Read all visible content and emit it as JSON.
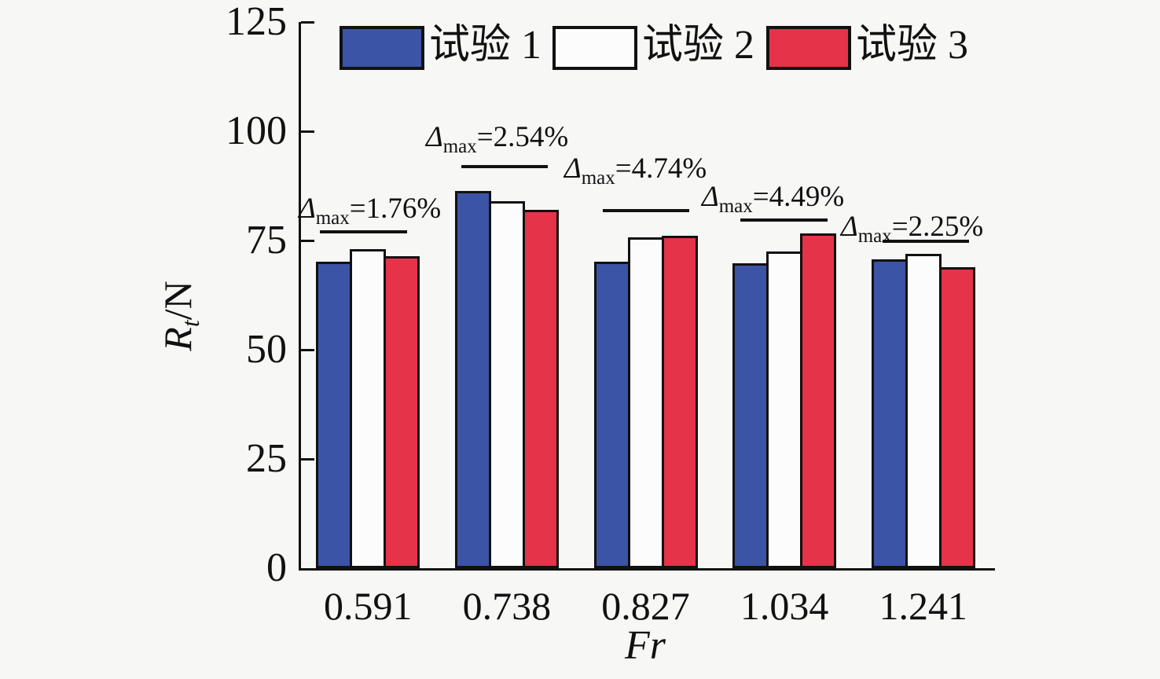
{
  "chart_data": {
    "type": "bar",
    "title": "",
    "xlabel": "Fr",
    "ylabel": {
      "main": "R",
      "sub": "t",
      "rest": "/N"
    },
    "categories": [
      "0.591",
      "0.738",
      "0.827",
      "1.034",
      "1.241"
    ],
    "series": [
      {
        "name": "试验 1",
        "color": "#3b54a6",
        "values": [
          70.1,
          86.3,
          70.1,
          69.8,
          70.7
        ]
      },
      {
        "name": "试验 2",
        "color": "#fcfcfc",
        "values": [
          73.0,
          84.0,
          75.7,
          72.4,
          71.9
        ]
      },
      {
        "name": "试验 3",
        "color": "#e53349",
        "values": [
          71.4,
          82.0,
          76.1,
          76.6,
          68.9
        ]
      }
    ],
    "ylim": [
      0,
      125
    ],
    "yticks": [
      0,
      25,
      50,
      75,
      100,
      125
    ],
    "grid": false,
    "legend_position": "top",
    "annotations": [
      {
        "delta": "Δ",
        "sub": "max",
        "value": "=1.76%",
        "group": "0.591"
      },
      {
        "delta": "Δ",
        "sub": "max",
        "value": "=2.54%",
        "group": "0.738"
      },
      {
        "delta": "Δ",
        "sub": "max",
        "value": "=4.74%",
        "group": "0.827"
      },
      {
        "delta": "Δ",
        "sub": "max",
        "value": "=4.49%",
        "group": "1.034"
      },
      {
        "delta": "Δ",
        "sub": "max",
        "value": "=2.25%",
        "group": "1.241"
      }
    ],
    "colors": {
      "background": "#f7f7f6",
      "axis": "#111111",
      "bar_outline": "#111111",
      "series1": "#3b54a6",
      "series2": "#fcfcfc",
      "series3": "#e53349"
    }
  }
}
